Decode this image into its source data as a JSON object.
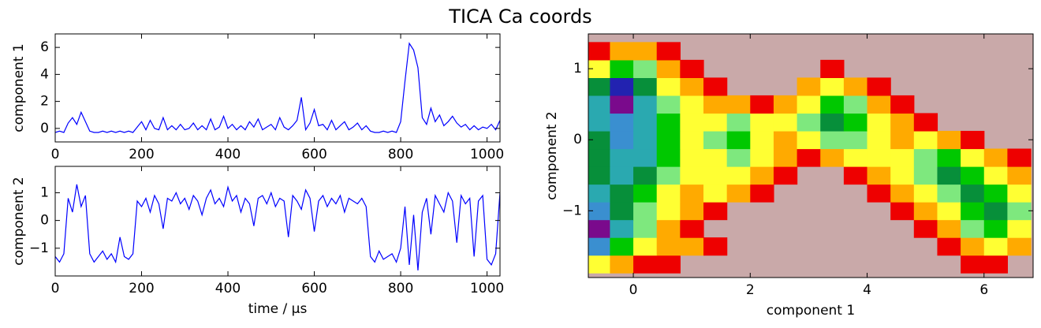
{
  "title": "TICA Ca coords",
  "chart_data": [
    {
      "type": "line",
      "ylabel": "component 1",
      "x": [
        0,
        10,
        20,
        30,
        40,
        50,
        60,
        70,
        80,
        90,
        100,
        110,
        120,
        130,
        140,
        150,
        160,
        170,
        180,
        190,
        200,
        210,
        220,
        230,
        240,
        250,
        260,
        270,
        280,
        290,
        300,
        310,
        320,
        330,
        340,
        350,
        360,
        370,
        380,
        390,
        400,
        410,
        420,
        430,
        440,
        450,
        460,
        470,
        480,
        490,
        500,
        510,
        520,
        530,
        540,
        550,
        560,
        570,
        580,
        590,
        600,
        610,
        620,
        630,
        640,
        650,
        660,
        670,
        680,
        690,
        700,
        710,
        720,
        730,
        740,
        750,
        760,
        770,
        780,
        790,
        800,
        810,
        820,
        830,
        840,
        850,
        860,
        870,
        880,
        890,
        900,
        910,
        920,
        930,
        940,
        950,
        960,
        970,
        980,
        990,
        1000,
        1010,
        1020,
        1030
      ],
      "series": [
        {
          "color": "#0000ff",
          "values": [
            -0.3,
            -0.2,
            -0.3,
            0.4,
            0.8,
            0.3,
            1.2,
            0.5,
            -0.2,
            -0.3,
            -0.3,
            -0.2,
            -0.3,
            -0.2,
            -0.3,
            -0.2,
            -0.3,
            -0.2,
            -0.3,
            0.1,
            0.5,
            -0.1,
            0.6,
            0.0,
            -0.1,
            0.8,
            -0.1,
            0.2,
            -0.1,
            0.3,
            -0.1,
            0.0,
            0.4,
            -0.1,
            0.2,
            -0.1,
            0.7,
            -0.1,
            0.1,
            0.9,
            0.0,
            0.3,
            -0.1,
            0.2,
            -0.1,
            0.5,
            0.1,
            0.7,
            -0.1,
            0.1,
            0.3,
            -0.1,
            0.8,
            0.1,
            -0.1,
            0.2,
            0.6,
            2.3,
            -0.1,
            0.4,
            1.4,
            0.2,
            0.3,
            -0.1,
            0.6,
            -0.1,
            0.2,
            0.5,
            -0.1,
            0.1,
            0.4,
            -0.1,
            0.2,
            -0.2,
            -0.3,
            -0.3,
            -0.2,
            -0.3,
            -0.2,
            -0.3,
            0.5,
            3.5,
            6.3,
            5.8,
            4.5,
            0.8,
            0.3,
            1.5,
            0.5,
            1.0,
            0.2,
            0.5,
            0.9,
            0.4,
            0.1,
            0.3,
            -0.1,
            0.2,
            -0.1,
            0.1,
            0.0,
            0.3,
            -0.1,
            0.6
          ]
        }
      ],
      "xlim": [
        0,
        1030
      ],
      "xticks": [
        0,
        200,
        400,
        600,
        800,
        1000
      ],
      "ylim": [
        -1,
        7
      ],
      "yticks": [
        0,
        2,
        4,
        6
      ]
    },
    {
      "type": "line",
      "xlabel": "time / μs",
      "ylabel": "component 2",
      "x": [
        0,
        10,
        20,
        30,
        40,
        50,
        60,
        70,
        80,
        90,
        100,
        110,
        120,
        130,
        140,
        150,
        160,
        170,
        180,
        190,
        200,
        210,
        220,
        230,
        240,
        250,
        260,
        270,
        280,
        290,
        300,
        310,
        320,
        330,
        340,
        350,
        360,
        370,
        380,
        390,
        400,
        410,
        420,
        430,
        440,
        450,
        460,
        470,
        480,
        490,
        500,
        510,
        520,
        530,
        540,
        550,
        560,
        570,
        580,
        590,
        600,
        610,
        620,
        630,
        640,
        650,
        660,
        670,
        680,
        690,
        700,
        710,
        720,
        730,
        740,
        750,
        760,
        770,
        780,
        790,
        800,
        810,
        820,
        830,
        840,
        850,
        860,
        870,
        880,
        890,
        900,
        910,
        920,
        930,
        940,
        950,
        960,
        970,
        980,
        990,
        1000,
        1010,
        1020,
        1030
      ],
      "series": [
        {
          "color": "#0000ff",
          "values": [
            -1.3,
            -1.5,
            -1.2,
            0.8,
            0.3,
            1.3,
            0.5,
            0.9,
            -1.2,
            -1.5,
            -1.3,
            -1.1,
            -1.4,
            -1.2,
            -1.5,
            -0.6,
            -1.3,
            -1.4,
            -1.2,
            0.7,
            0.5,
            0.8,
            0.3,
            0.9,
            0.6,
            -0.3,
            0.8,
            0.7,
            1.0,
            0.6,
            0.8,
            0.4,
            0.9,
            0.7,
            0.2,
            0.8,
            1.1,
            0.6,
            0.8,
            0.5,
            1.2,
            0.7,
            0.9,
            0.3,
            0.8,
            0.6,
            -0.2,
            0.8,
            0.9,
            0.6,
            1.0,
            0.5,
            0.8,
            0.7,
            -0.6,
            0.9,
            0.7,
            0.4,
            1.1,
            0.8,
            -0.4,
            0.7,
            0.9,
            0.5,
            0.8,
            0.6,
            0.9,
            0.3,
            0.8,
            0.7,
            0.6,
            0.8,
            0.5,
            -1.3,
            -1.5,
            -1.1,
            -1.4,
            -1.3,
            -1.2,
            -1.5,
            -1.0,
            0.5,
            -1.6,
            0.2,
            -1.8,
            0.3,
            0.8,
            -0.5,
            0.9,
            0.6,
            0.3,
            1.0,
            0.7,
            -0.8,
            0.9,
            0.6,
            0.8,
            -1.3,
            0.7,
            0.9,
            -1.4,
            -1.6,
            -1.2,
            1.0
          ]
        }
      ],
      "xlim": [
        0,
        1030
      ],
      "xticks": [
        0,
        200,
        400,
        600,
        800,
        1000
      ],
      "ylim": [
        -2,
        1.95
      ],
      "yticks": [
        {
          "value": -1,
          "label": "−1"
        },
        0,
        1
      ]
    },
    {
      "type": "contour",
      "xlabel": "component 1",
      "ylabel": "component 2",
      "x": [
        -0.6,
        -0.2,
        0.2,
        0.6,
        1.0,
        1.4,
        1.8,
        2.2,
        2.6,
        3.0,
        3.4,
        3.8,
        4.2,
        4.6,
        5.0,
        5.4,
        5.8,
        6.2,
        6.6
      ],
      "y": [
        -1.75,
        -1.5,
        -1.25,
        -1.0,
        -0.75,
        -0.5,
        -0.25,
        0,
        0.25,
        0.5,
        0.75,
        1.0,
        1.25
      ],
      "z": [
        [
          7,
          8,
          9,
          9,
          null,
          null,
          null,
          null,
          null,
          null,
          null,
          null,
          null,
          null,
          null,
          null,
          9,
          9,
          null
        ],
        [
          2,
          5,
          7,
          8,
          8,
          9,
          null,
          null,
          null,
          null,
          null,
          null,
          null,
          null,
          null,
          9,
          8,
          7,
          8
        ],
        [
          0,
          3,
          6,
          8,
          9,
          null,
          null,
          null,
          null,
          null,
          null,
          null,
          null,
          null,
          9,
          8,
          6,
          5,
          7
        ],
        [
          2,
          4,
          6,
          7,
          8,
          9,
          null,
          null,
          null,
          null,
          null,
          null,
          null,
          9,
          8,
          7,
          5,
          4,
          6
        ],
        [
          3,
          4,
          5,
          7,
          8,
          7,
          8,
          9,
          null,
          null,
          null,
          null,
          9,
          8,
          7,
          6,
          4,
          5,
          7
        ],
        [
          4,
          3,
          4,
          6,
          7,
          7,
          7,
          8,
          9,
          null,
          null,
          9,
          8,
          7,
          6,
          4,
          5,
          7,
          8
        ],
        [
          4,
          3,
          3,
          5,
          7,
          7,
          6,
          7,
          8,
          9,
          8,
          7,
          7,
          7,
          6,
          5,
          7,
          8,
          9
        ],
        [
          4,
          2,
          3,
          5,
          7,
          6,
          5,
          7,
          8,
          7,
          6,
          6,
          7,
          8,
          7,
          8,
          9,
          null,
          null
        ],
        [
          3,
          2,
          3,
          5,
          7,
          7,
          6,
          7,
          7,
          6,
          4,
          5,
          7,
          8,
          9,
          null,
          null,
          null,
          null
        ],
        [
          3,
          0,
          3,
          6,
          7,
          8,
          8,
          9,
          8,
          7,
          5,
          6,
          8,
          9,
          null,
          null,
          null,
          null,
          null
        ],
        [
          4,
          1,
          4,
          7,
          8,
          9,
          null,
          null,
          null,
          8,
          7,
          8,
          9,
          null,
          null,
          null,
          null,
          null,
          null
        ],
        [
          7,
          5,
          6,
          8,
          9,
          null,
          null,
          null,
          null,
          null,
          9,
          null,
          null,
          null,
          null,
          null,
          null,
          null,
          null
        ],
        [
          9,
          8,
          8,
          9,
          null,
          null,
          null,
          null,
          null,
          null,
          null,
          null,
          null,
          null,
          null,
          null,
          null,
          null,
          null
        ]
      ],
      "colors": [
        "#7a0a8c",
        "#2222b0",
        "#3a8fd0",
        "#2aa9b0",
        "#078f3a",
        "#00c800",
        "#7ee87e",
        "#ffff33",
        "#ffaa00",
        "#ee0000"
      ],
      "background": "#c9a9a9",
      "xlim": [
        -0.77,
        6.84
      ],
      "xticks": [
        0,
        2,
        4,
        6
      ],
      "ylim": [
        -1.94,
        1.49
      ],
      "yticks": [
        {
          "value": -1,
          "label": "−1"
        },
        0,
        1
      ]
    }
  ]
}
